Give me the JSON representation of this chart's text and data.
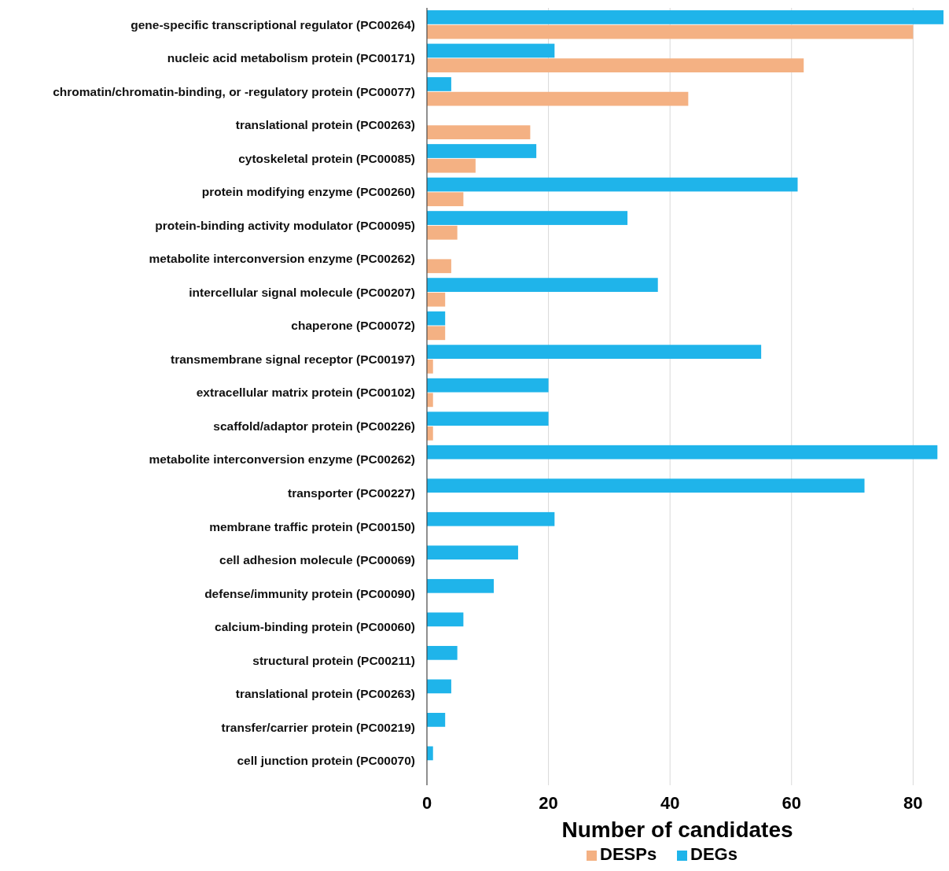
{
  "chart_data": {
    "type": "bar",
    "orientation": "horizontal",
    "xlabel": "Number of candidates",
    "categories": [
      "gene-specific transcriptional regulator (PC00264)",
      "nucleic acid metabolism protein (PC00171)",
      "chromatin/chromatin-binding, or -regulatory protein (PC00077)",
      "translational protein (PC00263)",
      "cytoskeletal protein (PC00085)",
      "protein modifying enzyme (PC00260)",
      "protein-binding activity modulator (PC00095)",
      "metabolite interconversion enzyme (PC00262)",
      "intercellular signal molecule (PC00207)",
      "chaperone (PC00072)",
      "transmembrane signal receptor (PC00197)",
      "extracellular matrix protein (PC00102)",
      "scaffold/adaptor protein (PC00226)",
      "metabolite interconversion enzyme (PC00262)",
      "transporter (PC00227)",
      "membrane traffic protein (PC00150)",
      "cell adhesion molecule (PC00069)",
      "defense/immunity protein (PC00090)",
      "calcium-binding protein (PC00060)",
      "structural protein (PC00211)",
      "translational protein (PC00263)",
      "transfer/carrier protein (PC00219)",
      "cell junction protein (PC00070)"
    ],
    "series": [
      {
        "name": "DESPs",
        "color": "#f4b183",
        "values": [
          80,
          62,
          43,
          17,
          8,
          6,
          5,
          4,
          3,
          3,
          1,
          1,
          1,
          null,
          null,
          null,
          null,
          null,
          null,
          null,
          null,
          null,
          null
        ]
      },
      {
        "name": "DEGs",
        "color": "#1fb4ea",
        "values": [
          85,
          21,
          4,
          null,
          18,
          61,
          33,
          null,
          38,
          3,
          55,
          20,
          20,
          84,
          72,
          21,
          15,
          11,
          6,
          5,
          4,
          3,
          1
        ]
      }
    ],
    "xlim": [
      0,
      85
    ],
    "xticks": [
      0,
      20,
      40,
      60,
      80
    ],
    "grid": "x",
    "legend": "bottom"
  }
}
